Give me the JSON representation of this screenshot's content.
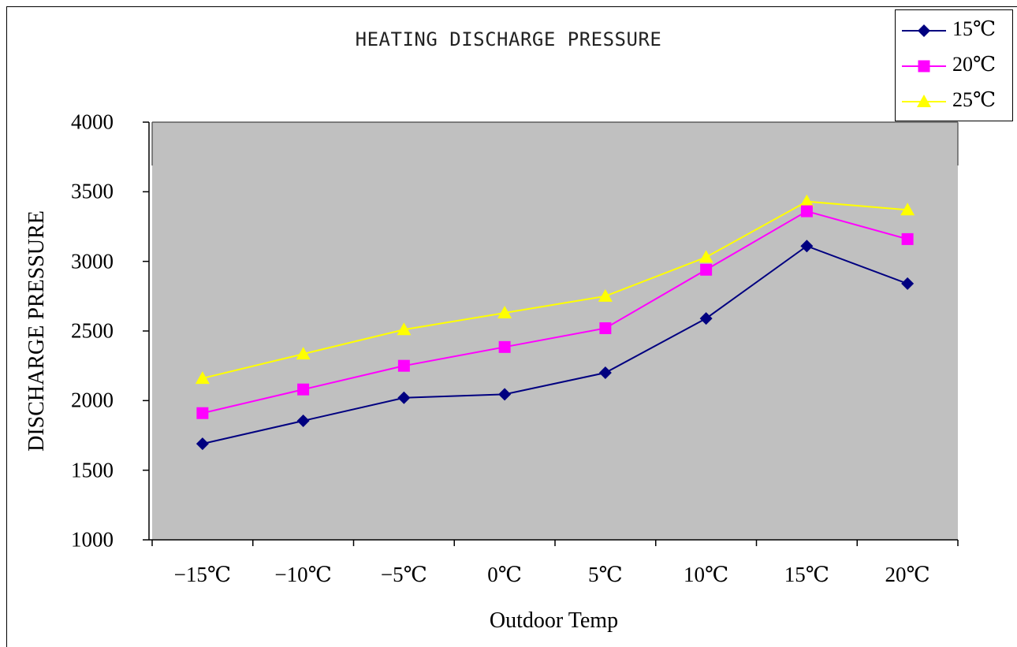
{
  "chart_data": {
    "type": "line",
    "title": "HEATING DISCHARGE PRESSURE",
    "xlabel": "Outdoor Temp",
    "ylabel": "DISCHARGE PRESSURE",
    "categories": [
      "−15℃",
      "−10℃",
      "−5℃",
      "0℃",
      "5℃",
      "10℃",
      "15℃",
      "20℃"
    ],
    "ylim": [
      1000,
      4000
    ],
    "yticks": [
      "1000",
      "1500",
      "2000",
      "2500",
      "3000",
      "3500",
      "4000"
    ],
    "plot_background": "#c0c0c0",
    "legend_position": "top-right",
    "series": [
      {
        "name": "15℃",
        "color": "#000080",
        "marker": "diamond",
        "values": [
          1690,
          1855,
          2020,
          2045,
          2200,
          2590,
          3110,
          2840
        ]
      },
      {
        "name": "20℃",
        "color": "#ff00ff",
        "marker": "square",
        "values": [
          1910,
          2080,
          2250,
          2385,
          2520,
          2940,
          3360,
          3160
        ]
      },
      {
        "name": "25℃",
        "color": "#ffff00",
        "marker": "triangle",
        "values": [
          2160,
          2335,
          2510,
          2630,
          2750,
          3030,
          3430,
          3370
        ]
      }
    ]
  }
}
